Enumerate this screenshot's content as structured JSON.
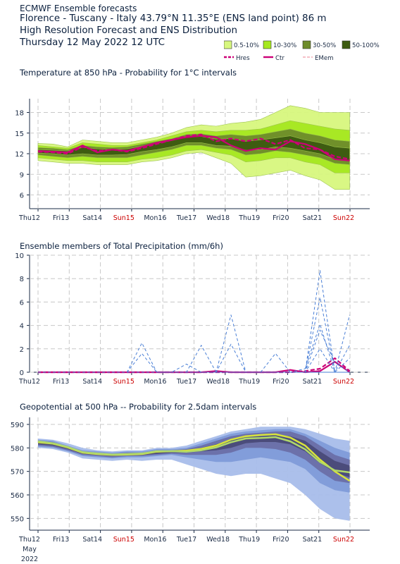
{
  "header": {
    "line1": "ECMWF Ensemble forecasts",
    "line2": "Florence - Tuscany - Italy 43.79°N 11.35°E (ENS land point) 86 m",
    "line3": "High Resolution Forecast and ENS Distribution",
    "line4": "Thursday 12 May 2022 12 UTC"
  },
  "legend": {
    "bands": [
      {
        "label": "0.5-10%",
        "color": "#d7f77e"
      },
      {
        "label": "10-30%",
        "color": "#a6e81f"
      },
      {
        "label": "30-50%",
        "color": "#6e8c2b"
      },
      {
        "label": "50-100%",
        "color": "#3c5a10"
      }
    ],
    "lines": [
      {
        "label": "Hres",
        "color": "#cc0077",
        "style": "dashed"
      },
      {
        "label": "Ctr",
        "color": "#cc0077",
        "style": "solid"
      },
      {
        "label": "EMem",
        "color": "#f09aa6",
        "style": "dashed"
      }
    ]
  },
  "x_axis": {
    "ticks": [
      "Thu12",
      "Fri13",
      "Sat14",
      "Sun15",
      "Mon16",
      "Tue17",
      "Wed18",
      "Thu19",
      "Fri20",
      "Sat21",
      "Sun22"
    ],
    "weekend_ticks": [
      "Sun15",
      "Sun22"
    ],
    "weekend_color": "#cc0000",
    "footer_month": "May",
    "footer_year": "2022"
  },
  "chart_data": [
    {
      "type": "area",
      "title": "Temperature at 850 hPa - Probability for 1°C intervals",
      "ylim": [
        4,
        20
      ],
      "yticks": [
        6,
        9,
        12,
        15,
        18
      ],
      "x": [
        0,
        0.5,
        1,
        1.5,
        2,
        2.5,
        3,
        3.5,
        4,
        4.5,
        5,
        5.5,
        6,
        6.5,
        7,
        7.5,
        8,
        8.5,
        9,
        9.5,
        10,
        10.5
      ],
      "series": [
        {
          "name": "0.5-10%",
          "upper": [
            13.5,
            13.4,
            13.0,
            14.0,
            13.8,
            13.6,
            13.6,
            14.0,
            14.4,
            15.0,
            15.8,
            16.2,
            16.0,
            16.4,
            16.6,
            17.0,
            18.0,
            19.0,
            18.6,
            18.0,
            18.0,
            18.0
          ],
          "lower": [
            11.0,
            10.8,
            10.6,
            10.6,
            10.4,
            10.4,
            10.4,
            10.8,
            11.0,
            11.4,
            12.0,
            12.2,
            11.4,
            10.6,
            8.6,
            8.8,
            9.2,
            9.6,
            8.8,
            8.2,
            6.8,
            6.8
          ]
        },
        {
          "name": "10-30%",
          "upper": [
            13.2,
            13.0,
            12.8,
            13.6,
            13.4,
            13.2,
            13.2,
            13.6,
            14.0,
            14.6,
            15.2,
            15.4,
            15.2,
            15.4,
            15.4,
            15.6,
            16.2,
            16.8,
            16.4,
            16.0,
            15.6,
            15.4
          ],
          "lower": [
            11.4,
            11.2,
            11.0,
            11.0,
            10.8,
            10.8,
            10.8,
            11.2,
            11.4,
            11.8,
            12.4,
            12.6,
            12.2,
            11.8,
            10.8,
            11.0,
            11.4,
            11.4,
            10.8,
            10.4,
            9.2,
            9.2
          ]
        },
        {
          "name": "30-50%",
          "upper": [
            12.9,
            12.8,
            12.6,
            13.2,
            13.0,
            12.9,
            13.0,
            13.4,
            13.8,
            14.2,
            14.8,
            14.9,
            14.6,
            14.8,
            14.6,
            14.8,
            15.2,
            15.6,
            15.0,
            14.6,
            14.0,
            13.8
          ],
          "lower": [
            11.8,
            11.6,
            11.4,
            11.6,
            11.4,
            11.4,
            11.4,
            11.8,
            12.2,
            12.6,
            13.2,
            13.2,
            12.8,
            12.6,
            11.8,
            12.0,
            12.4,
            12.2,
            11.8,
            11.4,
            10.6,
            10.4
          ]
        },
        {
          "name": "50-100%",
          "upper": [
            12.6,
            12.5,
            12.4,
            12.9,
            12.7,
            12.6,
            12.7,
            13.1,
            13.5,
            13.9,
            14.4,
            14.5,
            14.1,
            14.2,
            13.8,
            14.0,
            14.3,
            14.6,
            14.0,
            13.6,
            13.0,
            12.8
          ],
          "lower": [
            12.1,
            12.0,
            11.8,
            12.0,
            11.8,
            11.8,
            11.9,
            12.3,
            12.6,
            13.0,
            13.6,
            13.6,
            13.2,
            13.1,
            12.5,
            12.6,
            13.0,
            12.8,
            12.4,
            12.0,
            11.2,
            11.0
          ]
        },
        {
          "name": "Hres",
          "values": [
            12.3,
            12.2,
            12.0,
            13.0,
            12.4,
            12.6,
            12.3,
            12.8,
            13.4,
            14.0,
            14.6,
            14.8,
            13.8,
            14.2,
            13.8,
            14.2,
            13.4,
            14.0,
            12.8,
            12.6,
            11.6,
            11.2
          ]
        },
        {
          "name": "Ctr",
          "values": [
            12.4,
            12.3,
            12.2,
            13.2,
            12.2,
            12.6,
            12.4,
            13.0,
            13.6,
            14.0,
            14.4,
            14.6,
            14.4,
            13.2,
            12.4,
            12.8,
            12.6,
            13.8,
            13.4,
            12.6,
            11.2,
            11.0
          ]
        }
      ]
    },
    {
      "type": "line",
      "title": "Ensemble members of Total Precipitation (mm/6h)",
      "ylim": [
        0,
        10
      ],
      "yticks": [
        0,
        2,
        4,
        6,
        8,
        10
      ],
      "x": [
        0,
        0.5,
        1,
        1.5,
        2,
        2.5,
        3,
        3.5,
        4,
        4.5,
        5,
        5.5,
        6,
        6.5,
        7,
        7.5,
        8,
        8.5,
        9,
        9.5,
        10,
        10.5
      ],
      "series": [
        {
          "name": "Hres",
          "values": [
            0,
            0,
            0,
            0,
            0,
            0,
            0,
            0,
            0,
            0,
            0,
            0,
            0,
            0,
            0,
            0,
            0,
            0,
            0.1,
            0.3,
            1.2,
            0.1
          ]
        },
        {
          "name": "Ctr",
          "values": [
            0,
            0,
            0,
            0,
            0,
            0,
            0,
            0,
            0,
            0,
            0,
            0,
            0.1,
            0,
            0,
            0,
            0,
            0.2,
            0,
            0.1,
            0.9,
            0
          ]
        },
        {
          "name": "EMem",
          "values": [
            0,
            0,
            0,
            0,
            0,
            0,
            0,
            2.5,
            0,
            0,
            0,
            0,
            0,
            0,
            0,
            0,
            0,
            0,
            0,
            0,
            0,
            0
          ]
        },
        {
          "name": "EMem",
          "values": [
            0,
            0,
            0,
            0,
            0,
            0,
            0,
            1.6,
            0,
            0,
            0.7,
            0,
            0,
            0,
            0,
            0,
            0,
            0,
            0,
            0,
            0,
            0
          ]
        },
        {
          "name": "EMem",
          "values": [
            0,
            0,
            0,
            0,
            0,
            0,
            0,
            0,
            0,
            0,
            0,
            2.3,
            0,
            0,
            0,
            0,
            0,
            0,
            0,
            0,
            0,
            0
          ]
        },
        {
          "name": "EMem",
          "values": [
            0,
            0,
            0,
            0,
            0,
            0,
            0,
            0,
            0,
            0,
            0,
            0,
            0,
            4.9,
            0,
            0,
            0,
            0,
            0,
            0,
            0,
            0
          ]
        },
        {
          "name": "EMem",
          "values": [
            0,
            0,
            0,
            0,
            0,
            0,
            0,
            0,
            0,
            0,
            0,
            0,
            0,
            2.4,
            0,
            0,
            1.6,
            0,
            0,
            0,
            0,
            0
          ]
        },
        {
          "name": "EMem",
          "values": [
            0,
            0,
            0,
            0,
            0,
            0,
            0,
            0,
            0,
            0,
            0,
            0,
            0,
            0,
            0,
            0,
            0,
            0,
            0,
            8.7,
            0,
            0
          ]
        },
        {
          "name": "EMem",
          "values": [
            0,
            0,
            0,
            0,
            0,
            0,
            0,
            0,
            0,
            0,
            0,
            0,
            0,
            0,
            0,
            0,
            0,
            0,
            0,
            6.4,
            0,
            4.9
          ]
        },
        {
          "name": "EMem",
          "values": [
            0,
            0,
            0,
            0,
            0,
            0,
            0,
            0,
            0,
            0,
            0,
            0,
            0,
            0,
            0,
            0,
            0,
            0,
            0.3,
            4.1,
            0,
            1.2
          ]
        },
        {
          "name": "EMem",
          "values": [
            0,
            0,
            0,
            0,
            0,
            0,
            0,
            0,
            0,
            0,
            0,
            0,
            0,
            0,
            0,
            0,
            0,
            0,
            0,
            3.6,
            0.8,
            0
          ]
        },
        {
          "name": "EMem",
          "values": [
            0,
            0,
            0,
            0,
            0,
            0,
            0,
            0,
            0,
            0,
            0,
            0,
            0,
            0,
            0,
            0,
            0,
            0,
            0,
            2.0,
            0,
            2.3
          ]
        }
      ]
    },
    {
      "type": "area",
      "title": "Geopotential at 500 hPa -- Probability for 2.5dam intervals",
      "ylim": [
        545,
        593
      ],
      "yticks": [
        550,
        560,
        570,
        580,
        590
      ],
      "x": [
        0,
        0.5,
        1,
        1.5,
        2,
        2.5,
        3,
        3.5,
        4,
        4.5,
        5,
        5.5,
        6,
        6.5,
        7,
        7.5,
        8,
        8.5,
        9,
        9.5,
        10,
        10.5
      ],
      "series": [
        {
          "name": "0.5-10%",
          "upper": [
            584,
            583.5,
            582,
            580,
            579,
            578.5,
            579,
            579,
            580,
            580,
            581,
            583,
            585,
            587,
            588,
            589,
            589,
            589,
            588,
            586,
            584,
            583
          ],
          "lower": [
            580,
            579.5,
            578,
            575.5,
            575,
            574.5,
            575,
            574.5,
            575,
            575,
            573,
            571,
            569,
            568,
            569,
            569,
            567,
            565,
            560,
            554,
            550,
            549
          ]
        },
        {
          "name": "10-30%",
          "upper": [
            583.5,
            583,
            581,
            579,
            578.5,
            578,
            578.5,
            578.5,
            579.5,
            579.5,
            580,
            582,
            584,
            586,
            587,
            587.5,
            588,
            588,
            586,
            583,
            580,
            578
          ],
          "lower": [
            580.5,
            580,
            578.5,
            576.5,
            576,
            575.5,
            576,
            576,
            576.5,
            577,
            576,
            575,
            574,
            574,
            575,
            576,
            575,
            574,
            571,
            565,
            562,
            561
          ]
        },
        {
          "name": "30-50%",
          "upper": [
            583,
            582.5,
            580.5,
            578.5,
            578,
            577.5,
            578,
            578,
            579,
            579,
            579.5,
            581,
            583,
            585,
            586,
            586.5,
            587,
            587,
            585,
            581,
            577,
            575
          ],
          "lower": [
            581,
            580.5,
            579,
            577,
            576.5,
            576,
            576.5,
            576.5,
            577,
            577.5,
            577,
            577,
            577,
            578,
            580,
            580,
            579.5,
            578,
            575,
            570,
            566,
            565
          ]
        },
        {
          "name": "50-100%",
          "upper": [
            582.5,
            582,
            580,
            578,
            577.5,
            577,
            577.5,
            577.5,
            578.5,
            578.5,
            579,
            580,
            581.5,
            583.5,
            584.5,
            585,
            585.5,
            585,
            583,
            578.5,
            574.5,
            572.5
          ],
          "lower": [
            581.5,
            581,
            579.5,
            577.5,
            577,
            576.5,
            577,
            577,
            577.5,
            578,
            578,
            578.5,
            579,
            580,
            582,
            582.5,
            582.5,
            581.5,
            578.5,
            573.5,
            569.5,
            567.5
          ]
        },
        {
          "name": "Hres",
          "values": [
            582.4,
            581.8,
            580.2,
            578,
            577.4,
            577,
            577.2,
            577.4,
            578.4,
            578.6,
            578.8,
            579.6,
            581,
            583.5,
            585,
            585.5,
            585.8,
            584.4,
            581,
            575,
            570,
            566
          ]
        },
        {
          "name": "Ctr",
          "values": [
            582.8,
            582,
            580.4,
            578.2,
            577.6,
            577.2,
            577.4,
            577.6,
            578.6,
            578.6,
            578.4,
            579,
            580.2,
            582.4,
            584,
            584.2,
            584.6,
            582.8,
            579.4,
            574,
            570.4,
            569.6
          ]
        }
      ]
    }
  ]
}
